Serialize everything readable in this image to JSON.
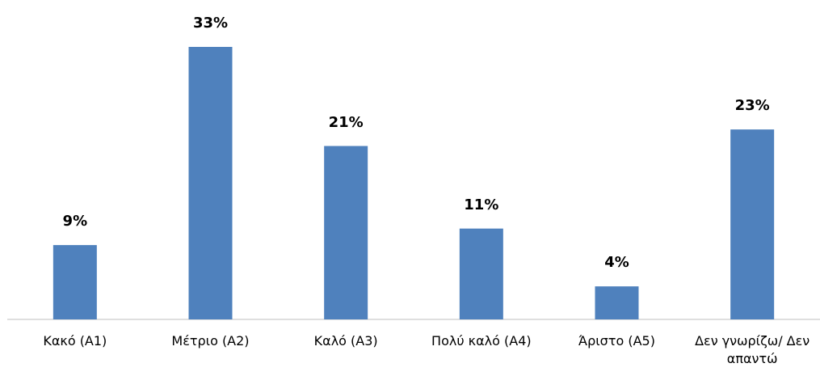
{
  "chart_data": {
    "type": "bar",
    "categories": [
      "Κακό (Α1)",
      "Μέτριο (Α2)",
      "Καλό (Α3)",
      "Πολύ καλό (Α4)",
      "Άριστο (Α5)",
      "Δεν γνωρίζω/ Δεν απαντώ"
    ],
    "values": [
      9,
      33,
      21,
      11,
      4,
      23
    ],
    "value_labels": [
      "9%",
      "33%",
      "21%",
      "11%",
      "4%",
      "23%"
    ],
    "color": "#4f81bd"
  }
}
